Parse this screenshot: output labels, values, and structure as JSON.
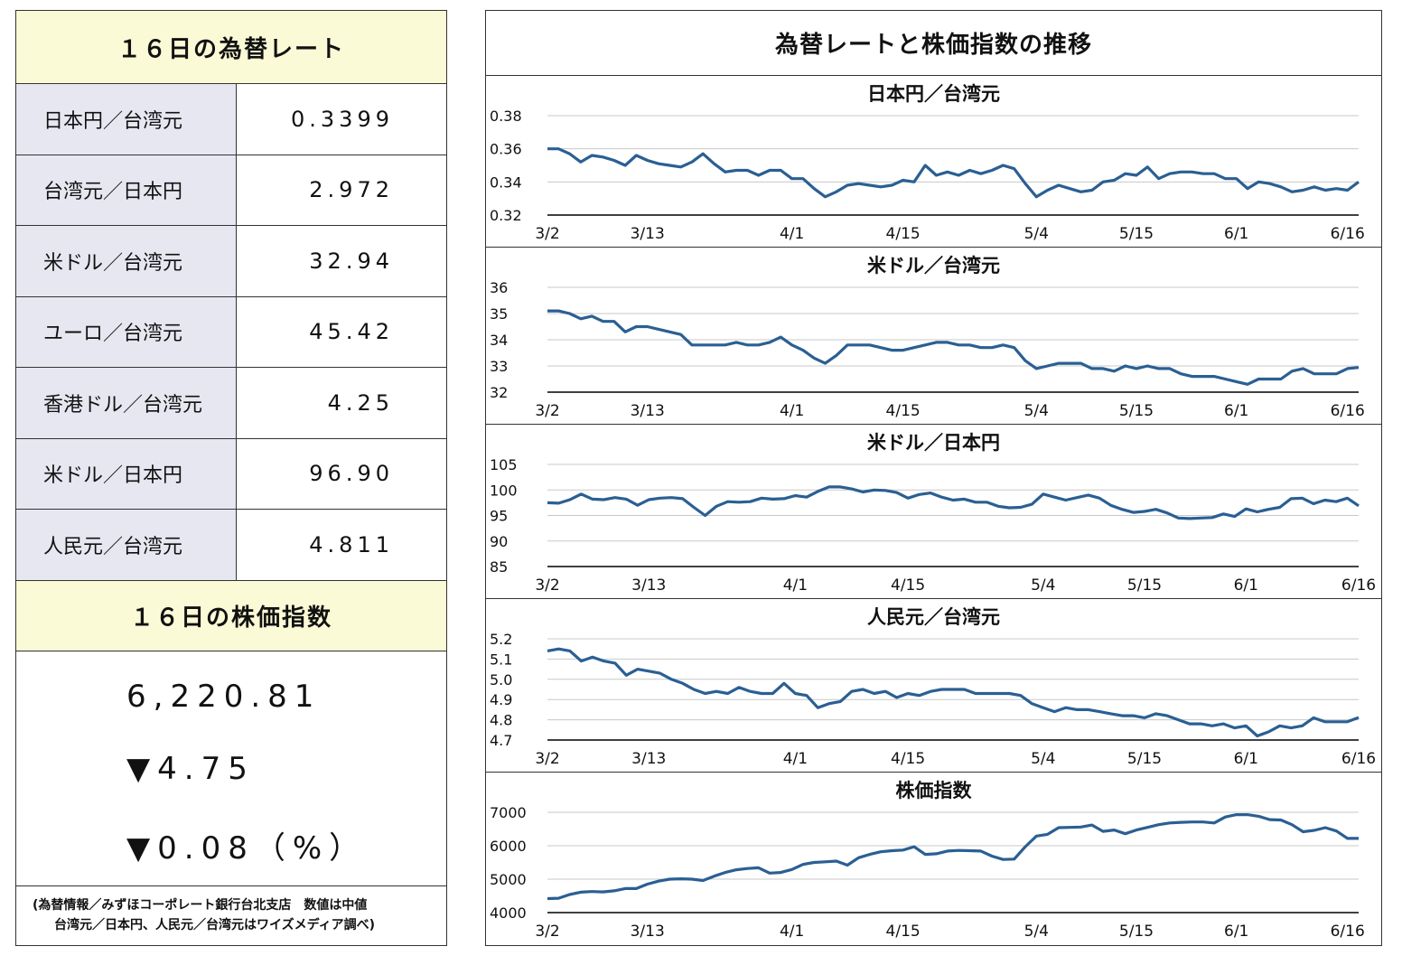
{
  "left": {
    "fx_title": "１６日の為替レート",
    "rates": [
      {
        "label": "日本円／台湾元",
        "value": "0.3399"
      },
      {
        "label": "台湾元／日本円",
        "value": "2.972"
      },
      {
        "label": "米ドル／台湾元",
        "value": "32.94"
      },
      {
        "label": "ユーロ／台湾元",
        "value": "45.42"
      },
      {
        "label": "香港ドル／台湾元",
        "value": "4.25"
      },
      {
        "label": "米ドル／日本円",
        "value": "96.90"
      },
      {
        "label": "人民元／台湾元",
        "value": "4.811"
      }
    ],
    "stock_title": "１６日の株価指数",
    "stock_value": "6,220.81",
    "stock_change": "▼4.75",
    "stock_pct": "▼0.08（%）",
    "note_line1": "(為替情報／みずほコーポレート銀行台北支店　数値は中値",
    "note_line2": "台湾元／日本円、人民元／台湾元はワイズメディア調べ)"
  },
  "right": {
    "title": "為替レートと株価指数の推移"
  },
  "chart_data": [
    {
      "type": "line",
      "title": "日本円／台湾元",
      "x_labels": [
        "3/2",
        "3/13",
        "4/1",
        "4/15",
        "5/4",
        "5/15",
        "6/1",
        "6/16"
      ],
      "x_label_index": [
        0,
        9,
        22,
        32,
        44,
        53,
        62,
        72
      ],
      "yticks": [
        "0.38",
        "0.36",
        "0.34",
        "0.32"
      ],
      "ylim": [
        0.32,
        0.38
      ],
      "color": "#2a5f93",
      "values": [
        0.36,
        0.36,
        0.357,
        0.352,
        0.356,
        0.355,
        0.353,
        0.35,
        0.356,
        0.353,
        0.351,
        0.35,
        0.349,
        0.352,
        0.357,
        0.351,
        0.346,
        0.347,
        0.347,
        0.344,
        0.347,
        0.347,
        0.342,
        0.342,
        0.336,
        0.331,
        0.334,
        0.338,
        0.339,
        0.338,
        0.337,
        0.338,
        0.341,
        0.34,
        0.35,
        0.344,
        0.346,
        0.344,
        0.347,
        0.345,
        0.347,
        0.35,
        0.348,
        0.339,
        0.331,
        0.335,
        0.338,
        0.336,
        0.334,
        0.335,
        0.34,
        0.341,
        0.345,
        0.344,
        0.349,
        0.342,
        0.345,
        0.346,
        0.346,
        0.345,
        0.345,
        0.342,
        0.342,
        0.336,
        0.34,
        0.339,
        0.337,
        0.334,
        0.335,
        0.337,
        0.335,
        0.336,
        0.335,
        0.34
      ]
    },
    {
      "type": "line",
      "title": "米ドル／台湾元",
      "x_labels": [
        "3/2",
        "3/13",
        "4/1",
        "4/15",
        "5/4",
        "5/15",
        "6/1",
        "6/16"
      ],
      "x_label_index": [
        0,
        9,
        22,
        32,
        44,
        53,
        62,
        72
      ],
      "yticks": [
        "36",
        "35",
        "34",
        "33",
        "32"
      ],
      "ylim": [
        32,
        36
      ],
      "color": "#2a5f93",
      "values": [
        35.1,
        35.1,
        35.0,
        34.8,
        34.9,
        34.7,
        34.7,
        34.3,
        34.5,
        34.5,
        34.4,
        34.3,
        34.2,
        33.8,
        33.8,
        33.8,
        33.8,
        33.9,
        33.8,
        33.8,
        33.9,
        34.1,
        33.8,
        33.6,
        33.3,
        33.1,
        33.4,
        33.8,
        33.8,
        33.8,
        33.7,
        33.6,
        33.6,
        33.7,
        33.8,
        33.9,
        33.9,
        33.8,
        33.8,
        33.7,
        33.7,
        33.8,
        33.7,
        33.2,
        32.9,
        33.0,
        33.1,
        33.1,
        33.1,
        32.9,
        32.9,
        32.8,
        33.0,
        32.9,
        33.0,
        32.9,
        32.9,
        32.7,
        32.6,
        32.6,
        32.6,
        32.5,
        32.4,
        32.3,
        32.5,
        32.5,
        32.5,
        32.8,
        32.9,
        32.7,
        32.7,
        32.7,
        32.9,
        32.94
      ]
    },
    {
      "type": "line",
      "title": "米ドル／日本円",
      "x_labels": [
        "3/2",
        "3/13",
        "4/1",
        "4/15",
        "5/4",
        "5/15",
        "6/1",
        "6/16"
      ],
      "x_label_index": [
        0,
        9,
        22,
        32,
        44,
        53,
        62,
        72
      ],
      "yticks": [
        "105",
        "100",
        "95",
        "90",
        "85"
      ],
      "ylim": [
        85,
        105
      ],
      "color": "#2a5f93",
      "values": [
        97.5,
        97.4,
        98.1,
        99.2,
        98.2,
        98.1,
        98.5,
        98.2,
        97.0,
        98.1,
        98.4,
        98.5,
        98.3,
        96.6,
        95.0,
        96.8,
        97.7,
        97.6,
        97.7,
        98.4,
        98.2,
        98.3,
        98.9,
        98.6,
        99.7,
        100.6,
        100.6,
        100.2,
        99.6,
        100.0,
        99.9,
        99.5,
        98.4,
        99.1,
        99.4,
        98.6,
        98.0,
        98.2,
        97.6,
        97.6,
        96.8,
        96.5,
        96.6,
        97.2,
        99.2,
        98.6,
        98.0,
        98.5,
        99.0,
        98.4,
        97.0,
        96.2,
        95.6,
        95.8,
        96.2,
        95.5,
        94.5,
        94.4,
        94.5,
        94.6,
        95.3,
        94.8,
        96.3,
        95.7,
        96.2,
        96.6,
        98.3,
        98.4,
        97.3,
        98.0,
        97.7,
        98.4,
        96.9
      ]
    },
    {
      "type": "line",
      "title": "人民元／台湾元",
      "x_labels": [
        "3/2",
        "3/13",
        "4/1",
        "4/15",
        "5/4",
        "5/15",
        "6/1",
        "6/16"
      ],
      "x_label_index": [
        0,
        9,
        22,
        32,
        44,
        53,
        62,
        72
      ],
      "yticks": [
        "5.2",
        "5.1",
        "5.0",
        "4.9",
        "4.8",
        "4.7"
      ],
      "ylim": [
        4.7,
        5.2
      ],
      "color": "#2a5f93",
      "values": [
        5.14,
        5.15,
        5.14,
        5.09,
        5.11,
        5.09,
        5.08,
        5.02,
        5.05,
        5.04,
        5.03,
        5.0,
        4.98,
        4.95,
        4.93,
        4.94,
        4.93,
        4.96,
        4.94,
        4.93,
        4.93,
        4.98,
        4.93,
        4.92,
        4.86,
        4.88,
        4.89,
        4.94,
        4.95,
        4.93,
        4.94,
        4.91,
        4.93,
        4.92,
        4.94,
        4.95,
        4.95,
        4.95,
        4.93,
        4.93,
        4.93,
        4.93,
        4.92,
        4.88,
        4.86,
        4.84,
        4.86,
        4.85,
        4.85,
        4.84,
        4.83,
        4.82,
        4.82,
        4.81,
        4.83,
        4.82,
        4.8,
        4.78,
        4.78,
        4.77,
        4.78,
        4.76,
        4.77,
        4.72,
        4.74,
        4.77,
        4.76,
        4.77,
        4.81,
        4.79,
        4.79,
        4.79,
        4.811
      ]
    },
    {
      "type": "line",
      "title": "株価指数",
      "x_labels": [
        "3/2",
        "3/13",
        "4/1",
        "4/15",
        "5/4",
        "5/15",
        "6/1",
        "6/16"
      ],
      "x_label_index": [
        0,
        9,
        22,
        32,
        44,
        53,
        62,
        72
      ],
      "yticks": [
        "7000",
        "6000",
        "5000",
        "4000"
      ],
      "ylim": [
        4000,
        7000
      ],
      "color": "#2a5f93",
      "values": [
        4420,
        4430,
        4540,
        4610,
        4630,
        4620,
        4650,
        4720,
        4720,
        4850,
        4940,
        5000,
        5010,
        5000,
        4960,
        5090,
        5200,
        5280,
        5320,
        5340,
        5180,
        5200,
        5290,
        5440,
        5500,
        5520,
        5540,
        5420,
        5640,
        5740,
        5820,
        5850,
        5870,
        5970,
        5740,
        5760,
        5840,
        5860,
        5850,
        5840,
        5690,
        5590,
        5600,
        5970,
        6290,
        6340,
        6540,
        6550,
        6560,
        6620,
        6430,
        6470,
        6360,
        6470,
        6550,
        6630,
        6680,
        6700,
        6710,
        6710,
        6680,
        6860,
        6930,
        6930,
        6880,
        6780,
        6770,
        6630,
        6420,
        6460,
        6540,
        6440,
        6220,
        6220
      ]
    }
  ]
}
